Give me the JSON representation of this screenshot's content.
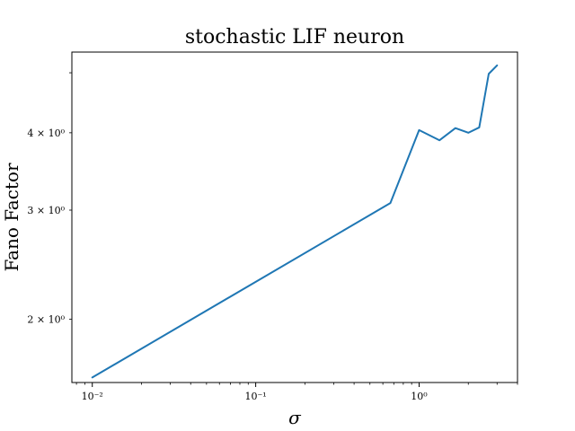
{
  "chart_data": {
    "type": "line",
    "title": "stochastic LIF neuron",
    "xlabel": "σ",
    "ylabel": "Fano Factor",
    "xscale": "log",
    "yscale": "log",
    "xlim": [
      0.0075,
      4.0
    ],
    "ylim": [
      1.58,
      5.4
    ],
    "grid": false,
    "line_color": "#1f77b4",
    "x_ticks": [
      {
        "value": 0.01,
        "label": "10⁻²"
      },
      {
        "value": 0.1,
        "label": "10⁻¹"
      },
      {
        "value": 1,
        "label": "10⁰"
      }
    ],
    "y_ticks": [
      {
        "value": 2,
        "label": "2 × 10⁰"
      },
      {
        "value": 3,
        "label": "3 × 10⁰"
      },
      {
        "value": 4,
        "label": "4 × 10⁰"
      }
    ],
    "series": [
      {
        "x": [
          0.01,
          0.667,
          1.0,
          1.333,
          1.667,
          2.0,
          2.333,
          2.667,
          3.0
        ],
        "values": [
          1.61,
          3.08,
          4.04,
          3.89,
          4.07,
          4.0,
          4.08,
          4.98,
          5.14
        ]
      }
    ]
  }
}
